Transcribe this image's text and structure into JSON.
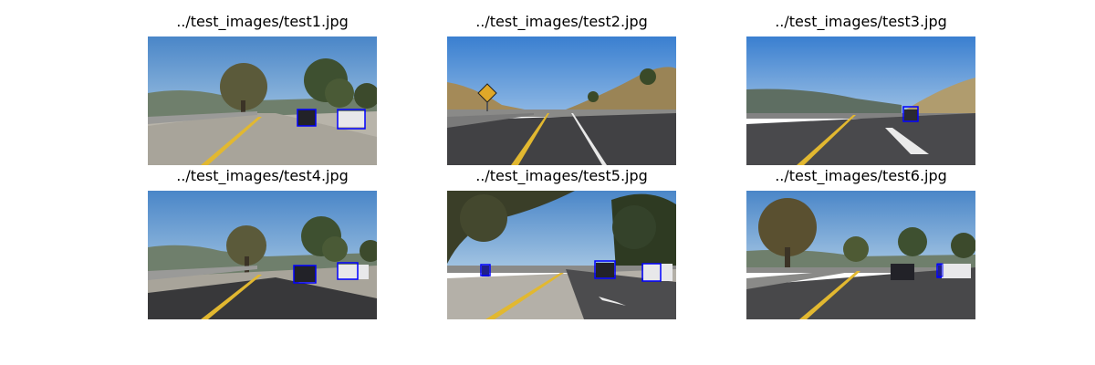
{
  "figure": {
    "panels": [
      {
        "title": "../test_images/test1.jpg",
        "detections": 2
      },
      {
        "title": "../test_images/test2.jpg",
        "detections": 0
      },
      {
        "title": "../test_images/test3.jpg",
        "detections": 1
      },
      {
        "title": "../test_images/test4.jpg",
        "detections": 2
      },
      {
        "title": "../test_images/test5.jpg",
        "detections": 3
      },
      {
        "title": "../test_images/test6.jpg",
        "detections": 2
      }
    ]
  },
  "colors": {
    "bounding_box": "#0000ff",
    "sky": "#5a8fc8",
    "road": "#4a4a4c",
    "lane_yellow": "#e8c020"
  }
}
